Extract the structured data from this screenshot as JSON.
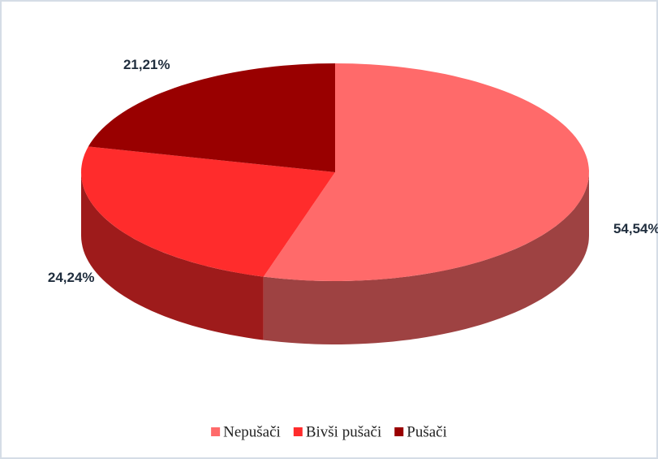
{
  "chart_data": {
    "type": "pie",
    "categories": [
      "Nepušači",
      "Bivši pušači",
      "Pušači"
    ],
    "values": [
      54.54,
      24.24,
      21.21
    ],
    "value_labels": [
      "54,54%",
      "24,24%",
      "21,21%"
    ],
    "colors": [
      "#ff6a6a",
      "#ff2c2c",
      "#990000"
    ],
    "legend": "bottom"
  }
}
